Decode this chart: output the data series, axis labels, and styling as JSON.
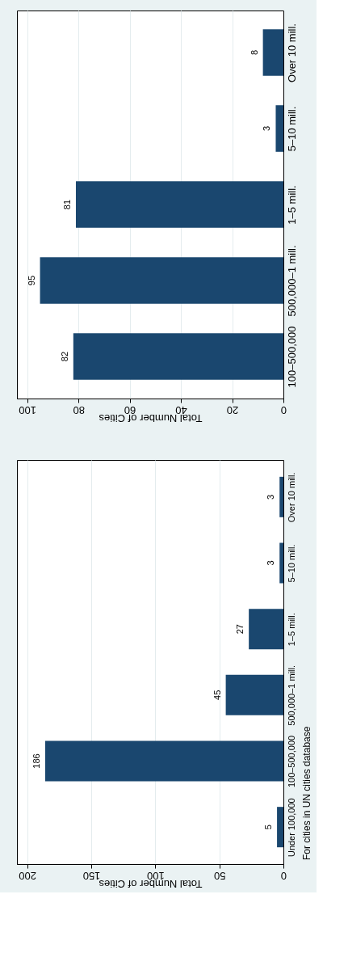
{
  "chart_data": [
    {
      "type": "bar",
      "orientation": "horizontal",
      "categories": [
        "Over 10 mill.",
        "5–10 mill.",
        "1–5 mill.",
        "500,000–1 mill.",
        "100–500,000"
      ],
      "values": [
        8,
        3,
        81,
        95,
        82
      ],
      "color": "#1a476f",
      "xlim": [
        104,
        0
      ],
      "xticks": [
        0,
        20,
        40,
        60,
        80,
        100
      ],
      "xlabel": "Total Number of Cities",
      "data_labels": true,
      "grid": "x"
    },
    {
      "type": "bar",
      "orientation": "horizontal",
      "categories": [
        "Over 10 mill.",
        "5–10 mill.",
        "1–5 mill.",
        "500,000–1 mill.",
        "100–500,000",
        "Under 100,000"
      ],
      "values": [
        3,
        3,
        27,
        45,
        186,
        5
      ],
      "color": "#1a476f",
      "xlim": [
        208,
        0
      ],
      "xticks": [
        0,
        50,
        100,
        150,
        200
      ],
      "xlabel": "Total Number of Cities",
      "data_labels": true,
      "grid": "x",
      "annotations": [
        "For cities in UN cities database"
      ]
    }
  ]
}
